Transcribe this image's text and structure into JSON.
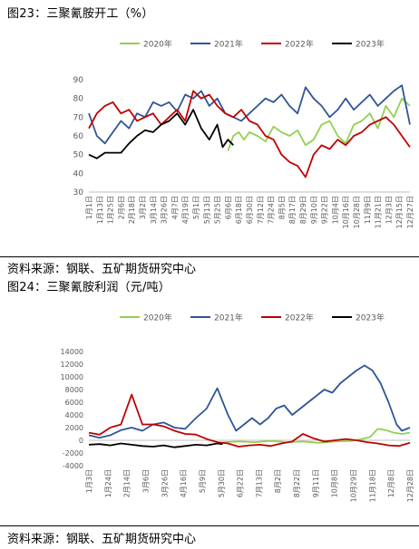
{
  "figures": [
    {
      "title": "图23：三聚氰胺开工（%）",
      "source": "资料来源：钢联、五矿期货研究中心"
    },
    {
      "title": "图24：三聚氰胺利润（元/吨）",
      "source": "资料来源：钢联、五矿期货研究中心"
    }
  ],
  "chart_data": [
    {
      "type": "line",
      "title": "",
      "xlabel": "",
      "ylabel": "",
      "ylim": [
        30,
        90
      ],
      "yticks": [
        30,
        40,
        50,
        60,
        70,
        80,
        90
      ],
      "grid": false,
      "legend_position": "top",
      "x_domain": [
        0,
        12
      ],
      "x_tick_labels": [
        "1月1日",
        "1月13日",
        "1月25日",
        "2月6日",
        "2月18日",
        "3月2日",
        "3月14日",
        "3月26日",
        "4月7日",
        "4月19日",
        "5月1日",
        "5月13日",
        "5月25日",
        "6月6日",
        "6月18日",
        "6月30日",
        "7月12日",
        "7月24日",
        "8月5日",
        "8月17日",
        "8月29日",
        "9月10日",
        "9月22日",
        "10月4日",
        "10月16日",
        "10月28日",
        "11月9日",
        "11月21日",
        "12月3日",
        "12月15日",
        "12月27日"
      ],
      "series": [
        {
          "name": "2020年",
          "color": "#92d050",
          "x": [
            5.2,
            5.4,
            5.6,
            5.8,
            6.0,
            6.3,
            6.6,
            6.9,
            7.2,
            7.5,
            7.8,
            8.1,
            8.4,
            8.7,
            9.0,
            9.3,
            9.6,
            9.9,
            10.2,
            10.5,
            10.8,
            11.1,
            11.4,
            11.7,
            12.0
          ],
          "y": [
            52,
            60,
            62,
            58,
            62,
            60,
            57,
            65,
            62,
            60,
            63,
            55,
            58,
            66,
            68,
            60,
            56,
            66,
            68,
            72,
            64,
            76,
            70,
            80,
            76
          ]
        },
        {
          "name": "2021年",
          "color": "#2f5597",
          "x": [
            0.0,
            0.3,
            0.6,
            0.9,
            1.2,
            1.5,
            1.8,
            2.1,
            2.4,
            2.7,
            3.0,
            3.3,
            3.6,
            3.9,
            4.2,
            4.5,
            4.8,
            5.1,
            5.4,
            5.7,
            6.0,
            6.3,
            6.6,
            6.9,
            7.2,
            7.5,
            7.8,
            8.1,
            8.4,
            8.7,
            9.0,
            9.3,
            9.6,
            9.9,
            10.2,
            10.5,
            10.8,
            11.1,
            11.4,
            11.7,
            12.0
          ],
          "y": [
            72,
            60,
            56,
            62,
            68,
            64,
            72,
            70,
            78,
            76,
            78,
            73,
            82,
            80,
            84,
            76,
            80,
            72,
            70,
            68,
            72,
            76,
            80,
            78,
            82,
            76,
            72,
            86,
            80,
            76,
            70,
            74,
            80,
            74,
            78,
            82,
            76,
            80,
            84,
            87,
            66
          ]
        },
        {
          "name": "2022年",
          "color": "#c00000",
          "x": [
            0.0,
            0.3,
            0.6,
            0.9,
            1.2,
            1.5,
            1.8,
            2.1,
            2.4,
            2.7,
            3.0,
            3.3,
            3.6,
            3.9,
            4.2,
            4.5,
            4.8,
            5.1,
            5.4,
            5.7,
            6.0,
            6.3,
            6.6,
            6.9,
            7.2,
            7.5,
            7.8,
            8.1,
            8.4,
            8.7,
            9.0,
            9.3,
            9.6,
            9.9,
            10.2,
            10.5,
            10.8,
            11.1,
            11.4,
            11.7,
            12.0
          ],
          "y": [
            64,
            72,
            76,
            78,
            72,
            74,
            68,
            70,
            72,
            66,
            70,
            74,
            68,
            84,
            80,
            82,
            76,
            72,
            70,
            74,
            68,
            66,
            60,
            58,
            50,
            46,
            44,
            38,
            50,
            55,
            53,
            58,
            55,
            60,
            62,
            66,
            68,
            70,
            66,
            60,
            54
          ]
        },
        {
          "name": "2023年",
          "color": "#000000",
          "x": [
            0.0,
            0.3,
            0.6,
            0.9,
            1.2,
            1.5,
            1.8,
            2.1,
            2.4,
            2.7,
            3.0,
            3.3,
            3.6,
            3.9,
            4.2,
            4.5,
            4.8,
            5.0,
            5.2,
            5.4
          ],
          "y": [
            50,
            48,
            51,
            51,
            51,
            56,
            60,
            63,
            62,
            66,
            68,
            72,
            66,
            74,
            64,
            58,
            66,
            54,
            58,
            55
          ]
        }
      ]
    },
    {
      "type": "line",
      "title": "",
      "xlabel": "",
      "ylabel": "",
      "ylim": [
        -4000,
        14000
      ],
      "yticks": [
        -4000,
        -2000,
        0,
        2000,
        4000,
        6000,
        8000,
        10000,
        12000,
        14000
      ],
      "grid": false,
      "legend_position": "top",
      "x_domain": [
        0,
        12
      ],
      "x_tick_labels": [
        "1月3日",
        "1月24日",
        "2月14日",
        "3月6日",
        "3月26日",
        "4月16日",
        "5月9日",
        "5月30日",
        "6月22日",
        "7月13日",
        "8月2日",
        "8月22日",
        "9月11日",
        "10月8日",
        "10月29日",
        "11月18日",
        "12月8日",
        "12月28日"
      ],
      "series": [
        {
          "name": "2020年",
          "color": "#92d050",
          "x": [
            5.0,
            5.6,
            6.2,
            6.8,
            7.4,
            8.0,
            8.6,
            9.2,
            9.8,
            10.2,
            10.5,
            10.8,
            11.1,
            11.4,
            11.7,
            12.0
          ],
          "y": [
            -300,
            -200,
            -300,
            -100,
            -300,
            -200,
            -400,
            -200,
            -100,
            200,
            500,
            1800,
            1600,
            1200,
            1000,
            1200
          ]
        },
        {
          "name": "2021年",
          "color": "#2f5597",
          "x": [
            0.0,
            0.4,
            0.8,
            1.2,
            1.6,
            2.0,
            2.4,
            2.8,
            3.2,
            3.6,
            4.0,
            4.4,
            4.8,
            5.2,
            5.5,
            5.8,
            6.1,
            6.4,
            6.7,
            7.0,
            7.3,
            7.6,
            7.9,
            8.2,
            8.5,
            8.8,
            9.1,
            9.4,
            9.7,
            10.0,
            10.3,
            10.6,
            10.9,
            11.2,
            11.5,
            11.7,
            12.0
          ],
          "y": [
            800,
            400,
            800,
            1600,
            2000,
            1500,
            2500,
            2800,
            2000,
            1800,
            3500,
            5000,
            8200,
            4000,
            1500,
            2500,
            3500,
            2500,
            3500,
            5000,
            5500,
            4000,
            5000,
            6000,
            7000,
            8000,
            7500,
            9000,
            10000,
            11000,
            11800,
            11000,
            9000,
            6000,
            2500,
            1500,
            2000
          ]
        },
        {
          "name": "2022年",
          "color": "#c00000",
          "x": [
            0.0,
            0.4,
            0.8,
            1.2,
            1.6,
            2.0,
            2.4,
            2.8,
            3.2,
            3.6,
            4.0,
            4.4,
            4.8,
            5.2,
            5.6,
            6.0,
            6.4,
            6.8,
            7.2,
            7.6,
            8.0,
            8.4,
            8.8,
            9.2,
            9.6,
            10.0,
            10.4,
            10.8,
            11.2,
            11.6,
            12.0
          ],
          "y": [
            1200,
            900,
            2000,
            2500,
            7200,
            2500,
            2500,
            2200,
            1500,
            1000,
            900,
            200,
            -300,
            -500,
            -1000,
            -800,
            -700,
            -900,
            -500,
            -200,
            1000,
            300,
            -200,
            0,
            200,
            0,
            -300,
            -500,
            -800,
            -900,
            -400
          ]
        },
        {
          "name": "2023年",
          "color": "#000000",
          "x": [
            0.0,
            0.4,
            0.8,
            1.2,
            1.6,
            2.0,
            2.4,
            2.8,
            3.2,
            3.6,
            4.0,
            4.4,
            4.8,
            5.0
          ],
          "y": [
            -700,
            -600,
            -800,
            -500,
            -700,
            -900,
            -1000,
            -800,
            -1100,
            -900,
            -700,
            -800,
            -500,
            -600
          ]
        }
      ]
    }
  ]
}
